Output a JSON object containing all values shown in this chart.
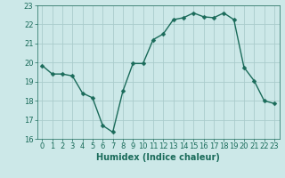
{
  "x": [
    0,
    1,
    2,
    3,
    4,
    5,
    6,
    7,
    8,
    9,
    10,
    11,
    12,
    13,
    14,
    15,
    16,
    17,
    18,
    19,
    20,
    21,
    22,
    23
  ],
  "y": [
    19.85,
    19.4,
    19.4,
    19.3,
    18.4,
    18.15,
    16.7,
    16.35,
    18.5,
    19.95,
    19.95,
    21.2,
    21.5,
    22.25,
    22.35,
    22.6,
    22.4,
    22.35,
    22.6,
    22.25,
    19.75,
    19.05,
    18.0,
    17.85
  ],
  "line_color": "#1a6b5a",
  "marker_color": "#1a6b5a",
  "bg_color": "#cce8e8",
  "grid_color": "#aacccc",
  "xlabel": "Humidex (Indice chaleur)",
  "ylim": [
    16,
    23
  ],
  "xlim": [
    -0.5,
    23.5
  ],
  "yticks": [
    16,
    17,
    18,
    19,
    20,
    21,
    22,
    23
  ],
  "xticks": [
    0,
    1,
    2,
    3,
    4,
    5,
    6,
    7,
    8,
    9,
    10,
    11,
    12,
    13,
    14,
    15,
    16,
    17,
    18,
    19,
    20,
    21,
    22,
    23
  ],
  "xlabel_fontsize": 7,
  "tick_fontsize": 6,
  "marker_size": 2.5,
  "line_width": 1.0
}
